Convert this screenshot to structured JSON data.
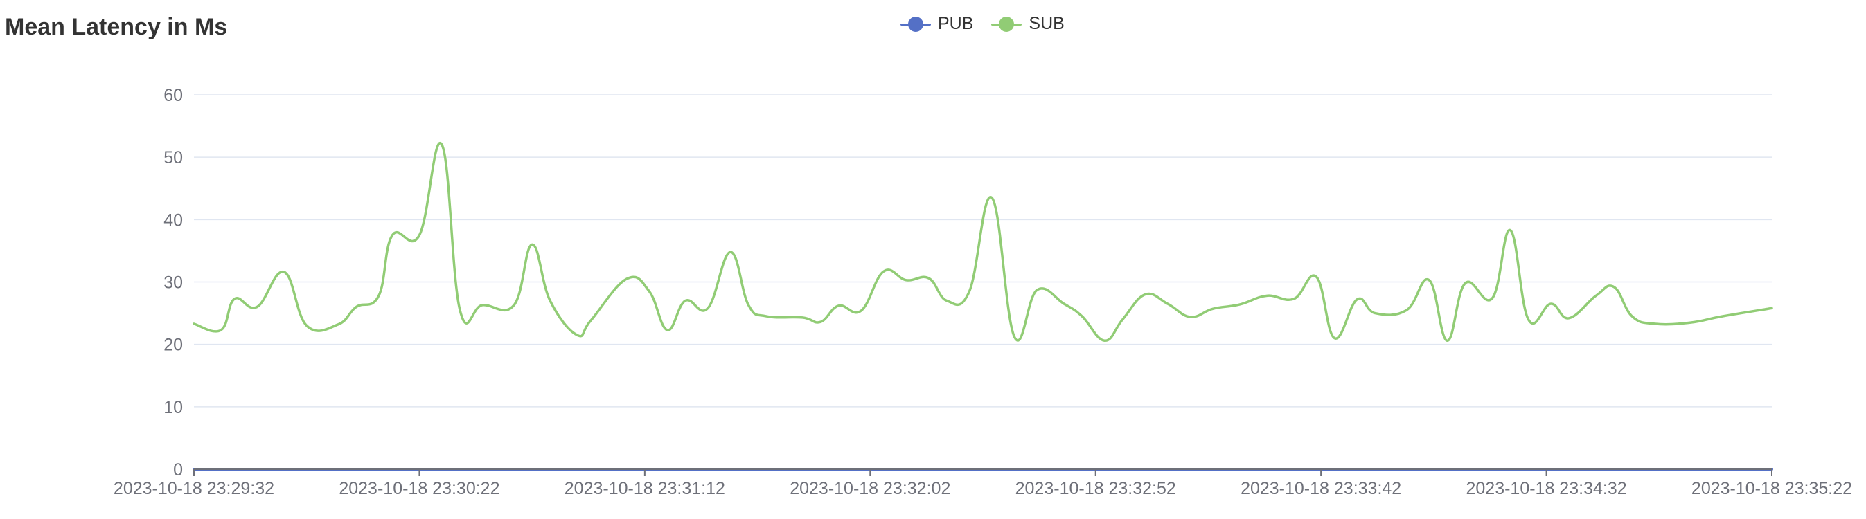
{
  "title": "Mean Latency in Ms",
  "colors": {
    "pub": "#5470c6",
    "sub": "#91cc75",
    "grid": "#e0e6f1",
    "axis": "#6e7079",
    "text": "#333333"
  },
  "chart_data": {
    "type": "line",
    "title": "Mean Latency in Ms",
    "xlabel": "",
    "ylabel": "",
    "ylim": [
      0,
      60
    ],
    "yticks": [
      0,
      10,
      20,
      30,
      40,
      50,
      60
    ],
    "xlim": [
      0,
      350
    ],
    "legend_position": "top-center",
    "grid": true,
    "smooth": true,
    "x_tick_labels": [
      {
        "t": 0,
        "label": "2023-10-18 23:29:32"
      },
      {
        "t": 50,
        "label": "2023-10-18 23:30:22"
      },
      {
        "t": 100,
        "label": "2023-10-18 23:31:12"
      },
      {
        "t": 150,
        "label": "2023-10-18 23:32:02"
      },
      {
        "t": 200,
        "label": "2023-10-18 23:32:52"
      },
      {
        "t": 250,
        "label": "2023-10-18 23:33:42"
      },
      {
        "t": 300,
        "label": "2023-10-18 23:34:32"
      },
      {
        "t": 350,
        "label": "2023-10-18 23:35:22"
      }
    ],
    "x_unit": "seconds since 2023-10-18 23:29:32",
    "series": [
      {
        "name": "PUB",
        "color": "#5470c6",
        "points": [
          [
            0,
            0
          ],
          [
            350,
            0
          ]
        ]
      },
      {
        "name": "SUB",
        "color": "#91cc75",
        "points": [
          [
            0,
            23.3
          ],
          [
            6,
            22.3
          ],
          [
            9,
            27.3
          ],
          [
            14,
            26.0
          ],
          [
            20,
            31.6
          ],
          [
            25,
            23.0
          ],
          [
            32,
            23.2
          ],
          [
            36,
            26.0
          ],
          [
            41,
            27.8
          ],
          [
            44,
            37.5
          ],
          [
            50,
            37.5
          ],
          [
            55,
            52.0
          ],
          [
            59,
            25.5
          ],
          [
            64,
            26.3
          ],
          [
            71,
            26.3
          ],
          [
            75,
            36.0
          ],
          [
            79,
            27.0
          ],
          [
            85,
            21.5
          ],
          [
            88,
            23.8
          ],
          [
            96,
            30.5
          ],
          [
            101,
            28.5
          ],
          [
            105,
            22.3
          ],
          [
            109,
            27.0
          ],
          [
            114,
            25.8
          ],
          [
            119,
            34.8
          ],
          [
            123,
            26.3
          ],
          [
            127,
            24.5
          ],
          [
            135,
            24.3
          ],
          [
            139,
            23.6
          ],
          [
            143,
            26.2
          ],
          [
            148,
            25.4
          ],
          [
            153,
            31.7
          ],
          [
            158,
            30.3
          ],
          [
            163,
            30.6
          ],
          [
            167,
            27.0
          ],
          [
            172,
            28.5
          ],
          [
            177,
            43.5
          ],
          [
            182,
            21.2
          ],
          [
            187,
            28.7
          ],
          [
            193,
            26.5
          ],
          [
            197,
            24.5
          ],
          [
            202,
            20.6
          ],
          [
            206,
            24.0
          ],
          [
            211,
            28.0
          ],
          [
            216,
            26.5
          ],
          [
            221,
            24.4
          ],
          [
            226,
            25.7
          ],
          [
            232,
            26.4
          ],
          [
            238,
            27.8
          ],
          [
            244,
            27.3
          ],
          [
            249,
            30.8
          ],
          [
            253,
            21.0
          ],
          [
            258,
            27.2
          ],
          [
            262,
            25.0
          ],
          [
            269,
            25.5
          ],
          [
            274,
            30.3
          ],
          [
            278,
            20.6
          ],
          [
            282,
            29.8
          ],
          [
            288,
            27.4
          ],
          [
            292,
            38.3
          ],
          [
            296,
            24.0
          ],
          [
            301,
            26.5
          ],
          [
            305,
            24.2
          ],
          [
            311,
            27.8
          ],
          [
            315,
            29.2
          ],
          [
            319,
            24.5
          ],
          [
            324,
            23.3
          ],
          [
            332,
            23.5
          ],
          [
            339,
            24.5
          ],
          [
            350,
            25.8
          ]
        ]
      }
    ]
  }
}
